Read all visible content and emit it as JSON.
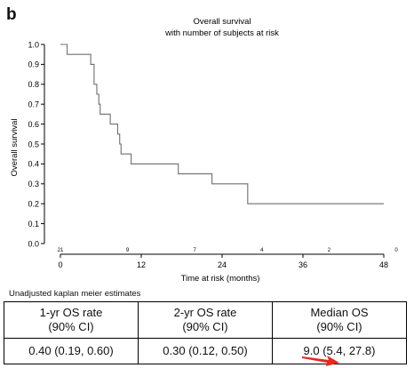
{
  "panel_label": "b",
  "chart_data": {
    "type": "line",
    "title": "Overall survival",
    "subtitle": "with number of subjects at risk",
    "xlabel": "Time at risk (months)",
    "ylabel": "Overall survival",
    "xlim": [
      0,
      48
    ],
    "ylim": [
      0,
      1
    ],
    "xticks": [
      0,
      12,
      24,
      36,
      48
    ],
    "yticks": [
      0.0,
      0.1,
      0.2,
      0.3,
      0.4,
      0.5,
      0.6,
      0.7,
      0.8,
      0.9,
      1.0
    ],
    "ytick_labels": [
      "0.0",
      "0.1",
      "0.2",
      "0.3",
      "0.4",
      "0.5",
      "0.6",
      "0.7",
      "0.8",
      "0.9",
      "1.0"
    ],
    "grid": false,
    "step_curve": [
      {
        "x": 0,
        "y": 1.0
      },
      {
        "x": 1.0,
        "y": 0.95
      },
      {
        "x": 4.5,
        "y": 0.9
      },
      {
        "x": 5.0,
        "y": 0.8
      },
      {
        "x": 5.4,
        "y": 0.75
      },
      {
        "x": 5.7,
        "y": 0.7
      },
      {
        "x": 5.9,
        "y": 0.65
      },
      {
        "x": 7.4,
        "y": 0.6
      },
      {
        "x": 8.5,
        "y": 0.55
      },
      {
        "x": 8.8,
        "y": 0.5
      },
      {
        "x": 9.0,
        "y": 0.45
      },
      {
        "x": 10.5,
        "y": 0.4
      },
      {
        "x": 17.5,
        "y": 0.35
      },
      {
        "x": 22.5,
        "y": 0.3
      },
      {
        "x": 27.8,
        "y": 0.2
      },
      {
        "x": 48,
        "y": 0.2
      }
    ],
    "at_risk": [
      {
        "x": 0,
        "label": "21"
      },
      {
        "x": 10,
        "label": "9"
      },
      {
        "x": 20,
        "label": "7"
      },
      {
        "x": 30,
        "label": "4"
      },
      {
        "x": 40,
        "label": "2"
      },
      {
        "x": 50,
        "label": "0"
      }
    ]
  },
  "table": {
    "caption": "Unadjusted kaplan meier estimates",
    "headers": [
      {
        "line1": "1-yr OS rate",
        "line2": "(90% CI)"
      },
      {
        "line1": "2-yr OS rate",
        "line2": "(90% CI)"
      },
      {
        "line1": "Median OS",
        "line2": "(90% CI)"
      }
    ],
    "row": [
      "0.40 (0.19, 0.60)",
      "0.30 (0.12, 0.50)",
      "9.0 (5.4, 27.8)"
    ]
  },
  "colors": {
    "curve": "#6e6e6e",
    "axis": "#000000",
    "annotation_arrow": "#e8281e"
  },
  "annotation": {
    "type": "red-arrow"
  }
}
